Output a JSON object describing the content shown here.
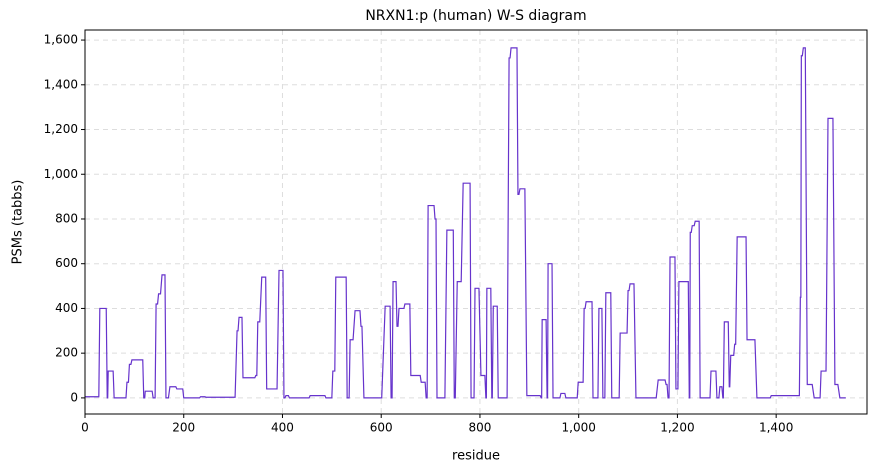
{
  "chart_data": {
    "type": "line",
    "title": "NRXN1:p (human) W-S diagram",
    "xlabel": "residue",
    "ylabel": "PSMs (tabbs)",
    "xlim": [
      0,
      1584
    ],
    "ylim": [
      -72,
      1645
    ],
    "xticks": [
      0,
      200,
      400,
      600,
      800,
      {
        "value": 1000,
        "label": "1,000"
      },
      {
        "value": 1200,
        "label": "1,200"
      },
      {
        "value": 1400,
        "label": "1,400"
      }
    ],
    "yticks": [
      0,
      200,
      400,
      600,
      800,
      {
        "value": 1000,
        "label": "1,000"
      },
      {
        "value": 1200,
        "label": "1,200"
      },
      {
        "value": 1400,
        "label": "1,400"
      },
      {
        "value": 1600,
        "label": "1,600"
      }
    ],
    "grid": true,
    "series": [
      {
        "color": "#6633cc",
        "x": [
          0,
          28,
          30,
          43,
          45,
          46,
          47,
          57,
          59,
          83,
          85,
          88,
          90,
          93,
          95,
          117,
          119,
          121,
          122,
          136,
          138,
          142,
          144,
          147,
          149,
          153,
          156,
          162,
          164,
          169,
          172,
          184,
          186,
          198,
          200,
          232,
          234,
          243,
          245,
          304,
          308,
          310,
          312,
          318,
          320,
          344,
          346,
          348,
          350,
          354,
          358,
          366,
          368,
          389,
          393,
          401,
          403,
          405,
          407,
          412,
          414,
          454,
          456,
          486,
          488,
          500,
          502,
          506,
          508,
          529,
          531,
          535,
          537,
          543,
          547,
          557,
          559,
          561,
          565,
          601,
          608,
          618,
          620,
          622,
          624,
          630,
          632,
          634,
          636,
          646,
          648,
          658,
          660,
          679,
          681,
          689,
          691,
          693,
          695,
          707,
          709,
          711,
          713,
          729,
          733,
          746,
          748,
          750,
          754,
          762,
          766,
          780,
          782,
          788,
          790,
          798,
          802,
          810,
          812,
          813,
          814,
          822,
          824,
          825,
          827,
          835,
          837,
          855,
          859,
          861,
          863,
          875,
          877,
          879,
          881,
          891,
          895,
          922,
          924,
          925,
          926,
          934,
          936,
          937,
          938,
          946,
          948,
          962,
          964,
          972,
          974,
          997,
          999,
          1009,
          1011,
          1013,
          1015,
          1027,
          1029,
          1039,
          1041,
          1047,
          1049,
          1053,
          1055,
          1065,
          1067,
          1082,
          1084,
          1098,
          1100,
          1102,
          1104,
          1112,
          1116,
          1157,
          1161,
          1175,
          1177,
          1179,
          1181,
          1183,
          1185,
          1195,
          1197,
          1201,
          1203,
          1222,
          1224,
          1225,
          1226,
          1228,
          1230,
          1234,
          1236,
          1244,
          1246,
          1266,
          1268,
          1278,
          1280,
          1284,
          1286,
          1290,
          1292,
          1293,
          1295,
          1303,
          1305,
          1306,
          1308,
          1314,
          1316,
          1318,
          1321,
          1339,
          1341,
          1357,
          1361,
          1388,
          1390,
          1447,
          1449,
          1450,
          1451,
          1453,
          1455,
          1459,
          1463,
          1473,
          1477,
          1489,
          1491,
          1501,
          1505,
          1515,
          1519,
          1525,
          1529,
          1541
        ],
        "values": [
          5,
          5,
          400,
          400,
          0,
          0,
          120,
          120,
          0,
          0,
          70,
          70,
          150,
          150,
          170,
          170,
          0,
          0,
          30,
          30,
          0,
          0,
          420,
          420,
          465,
          465,
          550,
          550,
          0,
          0,
          50,
          50,
          40,
          40,
          0,
          0,
          5,
          5,
          3,
          3,
          300,
          300,
          360,
          360,
          90,
          90,
          100,
          100,
          340,
          340,
          540,
          540,
          40,
          40,
          570,
          570,
          0,
          0,
          10,
          10,
          0,
          0,
          10,
          10,
          0,
          0,
          120,
          120,
          540,
          540,
          0,
          0,
          260,
          260,
          390,
          390,
          320,
          320,
          0,
          0,
          410,
          410,
          0,
          0,
          520,
          520,
          320,
          320,
          400,
          400,
          420,
          420,
          100,
          100,
          70,
          70,
          0,
          0,
          860,
          860,
          800,
          800,
          0,
          0,
          750,
          750,
          0,
          0,
          520,
          520,
          960,
          960,
          0,
          0,
          490,
          490,
          100,
          100,
          0,
          0,
          490,
          490,
          0,
          0,
          410,
          410,
          0,
          0,
          1520,
          1520,
          1565,
          1565,
          910,
          910,
          935,
          935,
          10,
          10,
          0,
          0,
          350,
          350,
          0,
          0,
          600,
          600,
          0,
          0,
          20,
          20,
          0,
          0,
          70,
          70,
          400,
          400,
          430,
          430,
          0,
          0,
          400,
          400,
          0,
          0,
          470,
          470,
          0,
          0,
          290,
          290,
          480,
          480,
          510,
          510,
          0,
          0,
          80,
          80,
          60,
          60,
          0,
          0,
          630,
          630,
          40,
          40,
          520,
          520,
          0,
          0,
          740,
          740,
          770,
          770,
          790,
          790,
          0,
          0,
          120,
          120,
          0,
          0,
          50,
          50,
          0,
          0,
          340,
          340,
          50,
          50,
          190,
          190,
          240,
          240,
          720,
          720,
          260,
          260,
          0,
          0,
          10,
          10,
          450,
          450,
          1530,
          1530,
          1565,
          1565,
          60,
          60,
          0,
          0,
          120,
          120,
          1250,
          1250,
          60,
          60,
          0,
          0
        ]
      }
    ]
  }
}
